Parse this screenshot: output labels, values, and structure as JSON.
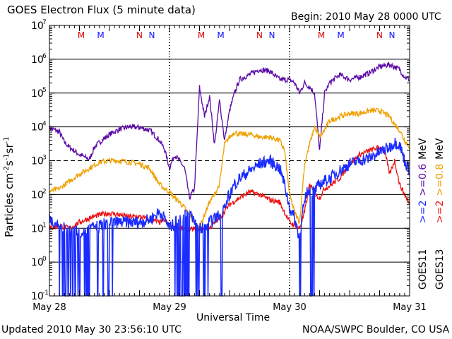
{
  "header": {
    "title": "GOES Electron Flux (5 minute data)",
    "begin": "Begin: 2010 May 28 0000 UTC"
  },
  "footer": {
    "updated": "Updated 2010 May 30 23:56:10 UTC",
    "credit": "NOAA/SWPC Boulder, CO USA"
  },
  "chart_data": {
    "type": "line",
    "title": "GOES Electron Flux (5 minute data)",
    "xlabel": "Universal Time",
    "ylabel_main": "Particles cm",
    "ylabel_exp1": "-2",
    "ylabel_mid": "s",
    "ylabel_exp2": "-1",
    "ylabel_end": "sr",
    "ylabel_exp3": "-1",
    "yscale": "log",
    "ylim_exponents": [
      -1,
      7
    ],
    "xlim_hours": [
      0,
      72
    ],
    "x_ticks": [
      {
        "hour": 0,
        "label": "May 28"
      },
      {
        "hour": 24,
        "label": "May 29"
      },
      {
        "hour": 48,
        "label": "May 30"
      },
      {
        "hour": 72,
        "label": "May 31"
      }
    ],
    "y_tick_base": "10",
    "y_ticks": [
      "-1",
      "0",
      "1",
      "2",
      "3",
      "4",
      "5",
      "6",
      "7"
    ],
    "threshold_exponent": 3,
    "grid": true,
    "markers": [
      "M",
      "M",
      "N",
      "N"
    ],
    "marker_colors": [
      "#e00000",
      "#1010ff",
      "#e00000",
      "#1010ff"
    ],
    "legend": {
      "goes11_label": "GOES11",
      "goes13_label": "GOES13",
      "goes11_e1": ">=2",
      "goes11_e2": ">=0.6",
      "goes13_e1": ">=2",
      "goes13_e2": ">=0.8",
      "unit": "MeV"
    },
    "series": [
      {
        "name": "GOES11 >=0.6 MeV",
        "color": "#5b0aa6",
        "points": [
          [
            0,
            9500
          ],
          [
            2,
            7000
          ],
          [
            3,
            3500
          ],
          [
            4,
            2500
          ],
          [
            6,
            1500
          ],
          [
            8,
            1100
          ],
          [
            9,
            2500
          ],
          [
            10,
            3500
          ],
          [
            12,
            6000
          ],
          [
            14,
            8500
          ],
          [
            16,
            10000
          ],
          [
            18,
            9500
          ],
          [
            20,
            8000
          ],
          [
            22,
            4000
          ],
          [
            23,
            2200
          ],
          [
            24,
            600
          ],
          [
            25,
            1500
          ],
          [
            26,
            1000
          ],
          [
            27,
            600
          ],
          [
            28,
            80
          ],
          [
            29,
            150
          ],
          [
            30,
            150000
          ],
          [
            31,
            20000
          ],
          [
            32,
            80000
          ],
          [
            33,
            3000
          ],
          [
            34,
            60000
          ],
          [
            35,
            4000
          ],
          [
            36,
            30000
          ],
          [
            37,
            100000
          ],
          [
            38,
            250000
          ],
          [
            40,
            350000
          ],
          [
            42,
            500000
          ],
          [
            44,
            450000
          ],
          [
            46,
            250000
          ],
          [
            47,
            250000
          ],
          [
            48,
            250000
          ],
          [
            49,
            200000
          ],
          [
            50,
            100000
          ],
          [
            51,
            200000
          ],
          [
            52,
            150000
          ],
          [
            53,
            100000
          ],
          [
            54,
            2000
          ],
          [
            55,
            100000
          ],
          [
            56,
            200000
          ],
          [
            58,
            350000
          ],
          [
            60,
            250000
          ],
          [
            62,
            300000
          ],
          [
            64,
            400000
          ],
          [
            66,
            600000
          ],
          [
            68,
            700000
          ],
          [
            70,
            500000
          ],
          [
            71,
            300000
          ],
          [
            72,
            250000
          ]
        ]
      },
      {
        "name": "GOES13 >=0.8 MeV",
        "color": "#f0a000",
        "points": [
          [
            0,
            120
          ],
          [
            2,
            150
          ],
          [
            4,
            250
          ],
          [
            6,
            400
          ],
          [
            8,
            600
          ],
          [
            10,
            900
          ],
          [
            12,
            1000
          ],
          [
            14,
            1000
          ],
          [
            16,
            900
          ],
          [
            18,
            800
          ],
          [
            20,
            600
          ],
          [
            21,
            350
          ],
          [
            22,
            200
          ],
          [
            23,
            150
          ],
          [
            24,
            120
          ],
          [
            25,
            80
          ],
          [
            26,
            60
          ],
          [
            27,
            40
          ],
          [
            28,
            25
          ],
          [
            29,
            15
          ],
          [
            30,
            10
          ],
          [
            31,
            25
          ],
          [
            32,
            60
          ],
          [
            33,
            100
          ],
          [
            34,
            200
          ],
          [
            35,
            3000
          ],
          [
            36,
            5000
          ],
          [
            37,
            7000
          ],
          [
            38,
            6000
          ],
          [
            40,
            6000
          ],
          [
            42,
            5000
          ],
          [
            44,
            5000
          ],
          [
            46,
            4000
          ],
          [
            47,
            2000
          ],
          [
            48,
            100
          ],
          [
            49,
            30
          ],
          [
            50,
            15
          ],
          [
            51,
            800
          ],
          [
            52,
            3000
          ],
          [
            53,
            10000
          ],
          [
            54,
            5000
          ],
          [
            55,
            8000
          ],
          [
            56,
            15000
          ],
          [
            58,
            20000
          ],
          [
            60,
            25000
          ],
          [
            62,
            25000
          ],
          [
            64,
            30000
          ],
          [
            66,
            30000
          ],
          [
            68,
            20000
          ],
          [
            69,
            12000
          ],
          [
            70,
            8000
          ],
          [
            71,
            4000
          ],
          [
            72,
            2500
          ]
        ]
      },
      {
        "name": "GOES13 >=2 MeV",
        "color": "#ee1111",
        "points": [
          [
            0,
            10
          ],
          [
            2,
            12
          ],
          [
            4,
            10
          ],
          [
            6,
            15
          ],
          [
            8,
            20
          ],
          [
            10,
            25
          ],
          [
            12,
            28
          ],
          [
            14,
            25
          ],
          [
            16,
            22
          ],
          [
            18,
            22
          ],
          [
            20,
            18
          ],
          [
            22,
            15
          ],
          [
            23,
            18
          ],
          [
            24,
            12
          ],
          [
            26,
            10
          ],
          [
            28,
            9
          ],
          [
            30,
            10
          ],
          [
            32,
            10
          ],
          [
            34,
            20
          ],
          [
            36,
            50
          ],
          [
            38,
            80
          ],
          [
            40,
            120
          ],
          [
            42,
            100
          ],
          [
            44,
            70
          ],
          [
            46,
            60
          ],
          [
            47,
            30
          ],
          [
            48,
            15
          ],
          [
            50,
            10
          ],
          [
            51,
            30
          ],
          [
            52,
            200
          ],
          [
            53,
            100
          ],
          [
            54,
            80
          ],
          [
            55,
            150
          ],
          [
            56,
            180
          ],
          [
            58,
            300
          ],
          [
            60,
            800
          ],
          [
            62,
            1500
          ],
          [
            64,
            2000
          ],
          [
            66,
            2500
          ],
          [
            67,
            2000
          ],
          [
            68,
            400
          ],
          [
            69,
            1000
          ],
          [
            70,
            200
          ],
          [
            71,
            100
          ],
          [
            72,
            50
          ]
        ]
      },
      {
        "name": "GOES11 >=2 MeV",
        "color": "#1a2cff",
        "points": [
          [
            0,
            20
          ],
          [
            1,
            15
          ],
          [
            2,
            12
          ],
          [
            3,
            10
          ],
          [
            4,
            8
          ],
          [
            5,
            10
          ],
          [
            6,
            8
          ],
          [
            8,
            10
          ],
          [
            10,
            12
          ],
          [
            12,
            15
          ],
          [
            14,
            15
          ],
          [
            16,
            15
          ],
          [
            18,
            15
          ],
          [
            20,
            18
          ],
          [
            22,
            30
          ],
          [
            23,
            20
          ],
          [
            24,
            10
          ],
          [
            26,
            20
          ],
          [
            28,
            30
          ],
          [
            30,
            10
          ],
          [
            32,
            15
          ],
          [
            34,
            25
          ],
          [
            36,
            100
          ],
          [
            37,
            200
          ],
          [
            38,
            300
          ],
          [
            40,
            500
          ],
          [
            42,
            800
          ],
          [
            44,
            1000
          ],
          [
            46,
            600
          ],
          [
            47,
            200
          ],
          [
            48,
            40
          ],
          [
            49,
            20
          ],
          [
            50,
            5
          ],
          [
            51,
            80
          ],
          [
            52,
            150
          ],
          [
            53,
            120
          ],
          [
            54,
            200
          ],
          [
            55,
            250
          ],
          [
            56,
            300
          ],
          [
            58,
            500
          ],
          [
            60,
            800
          ],
          [
            62,
            1000
          ],
          [
            64,
            1200
          ],
          [
            66,
            1800
          ],
          [
            68,
            2500
          ],
          [
            69,
            3500
          ],
          [
            70,
            3000
          ],
          [
            71,
            1000
          ],
          [
            72,
            500
          ]
        ]
      }
    ],
    "drop_hours": [
      [
        2,
        8
      ],
      [
        9,
        13
      ],
      [
        25,
        32
      ],
      [
        34,
        36
      ],
      [
        50,
        51
      ],
      [
        52,
        53
      ]
    ]
  }
}
